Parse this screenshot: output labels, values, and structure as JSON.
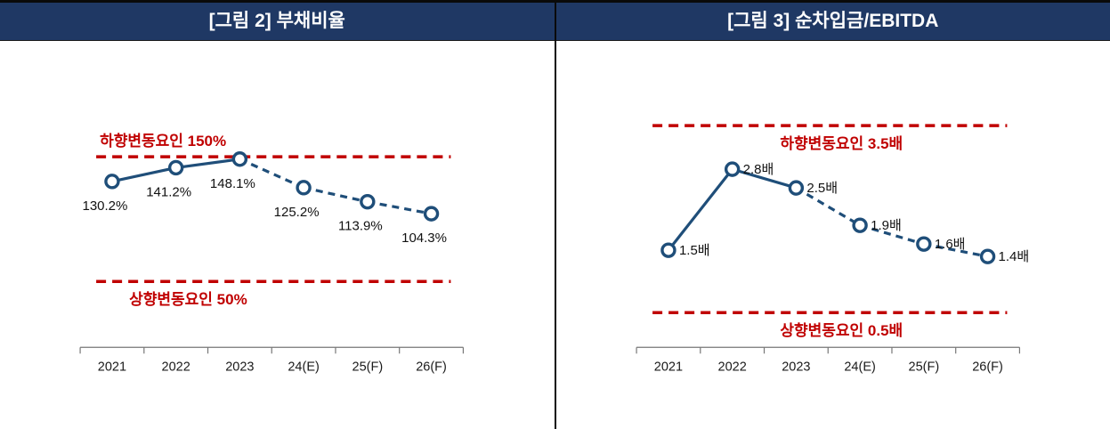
{
  "chart_data": [
    {
      "type": "line",
      "title": "[그림 2] 부채비율",
      "categories": [
        "2021",
        "2022",
        "2023",
        "24(E)",
        "25(F)",
        "26(F)"
      ],
      "series": [
        {
          "name": "부채비율",
          "values": [
            130.2,
            141.2,
            148.1,
            125.2,
            113.9,
            104.3
          ]
        }
      ],
      "value_labels": [
        "130.2%",
        "141.2%",
        "148.1%",
        "125.2%",
        "113.9%",
        "104.3%"
      ],
      "solid_until_index": 2,
      "ylim": [
        0,
        200
      ],
      "upper_limit": {
        "value": 150,
        "label": "하향변동요인 150%",
        "label_position": "above-left"
      },
      "lower_limit": {
        "value": 50,
        "label": "상향변동요인 50%",
        "label_position": "below-left"
      },
      "value_label_position": "below",
      "line_color": "#1f4e79",
      "limit_color": "#c00000",
      "grid": false,
      "legend": "none"
    },
    {
      "type": "line",
      "title": "[그림 3] 순차입금/EBITDA",
      "categories": [
        "2021",
        "2022",
        "2023",
        "24(E)",
        "25(F)",
        "26(F)"
      ],
      "series": [
        {
          "name": "순차입금/EBITDA",
          "values": [
            1.5,
            2.8,
            2.5,
            1.9,
            1.6,
            1.4
          ]
        }
      ],
      "value_labels": [
        "1.5배",
        "2.8배",
        "2.5배",
        "1.9배",
        "1.6배",
        "1.4배"
      ],
      "solid_until_index": 2,
      "ylim": [
        0,
        4
      ],
      "upper_limit": {
        "value": 3.5,
        "label": "하향변동요인 3.5배",
        "label_position": "below-center"
      },
      "lower_limit": {
        "value": 0.5,
        "label": "상향변동요인 0.5배",
        "label_position": "below-center"
      },
      "value_label_position": "right",
      "line_color": "#1f4e79",
      "limit_color": "#c00000",
      "grid": false,
      "legend": "none"
    }
  ],
  "colors": {
    "header_bg": "#1f3864",
    "header_text": "#ffffff",
    "frame_border": "#0a0a0a",
    "axis": "#777777"
  }
}
